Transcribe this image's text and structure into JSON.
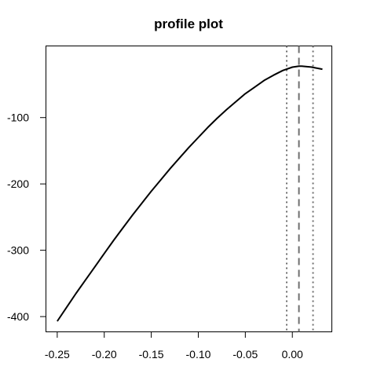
{
  "chart_data": {
    "type": "line",
    "title": "profile plot",
    "xlabel": "",
    "ylabel": "",
    "xlim": [
      -0.262,
      0.042
    ],
    "ylim": [
      -423,
      8
    ],
    "x_ticks": [
      -0.25,
      -0.2,
      -0.15,
      -0.1,
      -0.05,
      0.0
    ],
    "x_tick_labels": [
      "-0.25",
      "-0.20",
      "-0.15",
      "-0.10",
      "-0.05",
      "0.00"
    ],
    "y_ticks": [
      -100,
      -200,
      -300,
      -400
    ],
    "y_tick_labels": [
      "-100",
      "-200",
      "-300",
      "-400"
    ],
    "series": [
      {
        "x": [
          -0.25,
          -0.24,
          -0.23,
          -0.22,
          -0.21,
          -0.2,
          -0.19,
          -0.18,
          -0.17,
          -0.16,
          -0.15,
          -0.14,
          -0.13,
          -0.12,
          -0.11,
          -0.1,
          -0.09,
          -0.08,
          -0.07,
          -0.06,
          -0.05,
          -0.04,
          -0.03,
          -0.02,
          -0.01,
          0.0,
          0.007,
          0.01,
          0.02,
          0.032
        ],
        "y": [
          -407,
          -386,
          -365,
          -345,
          -325,
          -305,
          -285,
          -266,
          -247,
          -229,
          -211,
          -194,
          -177,
          -161,
          -145,
          -130,
          -115,
          -101,
          -88,
          -76,
          -64,
          -54,
          -44,
          -36,
          -29,
          -24,
          -22.5,
          -22.6,
          -23.8,
          -27
        ]
      }
    ],
    "reference_lines": [
      {
        "x": -0.006,
        "style": "dotted"
      },
      {
        "x": 0.007,
        "style": "dashed"
      },
      {
        "x": 0.022,
        "style": "dotted"
      }
    ],
    "grid": false,
    "colors": {
      "curve": "#000000",
      "reference": "#6e6e6e",
      "axes": "#000000"
    }
  }
}
